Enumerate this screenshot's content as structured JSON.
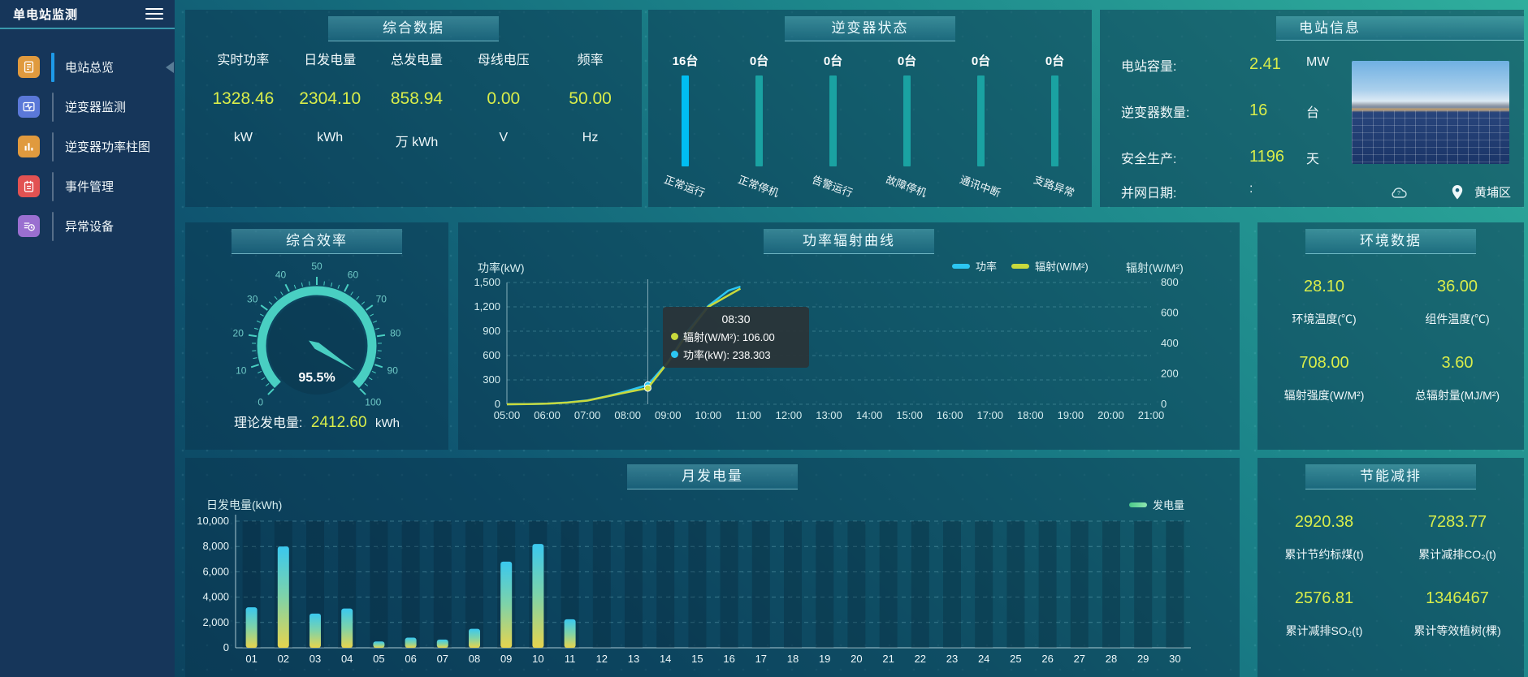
{
  "colors": {
    "accent_yellow": "#d9ed4a",
    "power_line": "#2cc6f2",
    "radiation_line": "#c8d93c",
    "inverter_run": "#00bdf2",
    "inverter_idle": "#1aa2a2",
    "gauge": "#49cfc2",
    "bar_top": "#3ac8ef",
    "bar_bottom": "#e6d44e",
    "menu_active": "#1e9ae8"
  },
  "sidebar": {
    "title": "单电站监测",
    "items": [
      {
        "name": "station-overview",
        "label": "电站总览",
        "icon": "report-icon",
        "color": "#e09a3e",
        "active": true
      },
      {
        "name": "inverter-monitoring",
        "label": "逆变器监测",
        "icon": "waveform-monitor-icon",
        "color": "#5a78d8",
        "active": false
      },
      {
        "name": "inverter-power-bars",
        "label": "逆变器功率柱图",
        "icon": "bar-chart-icon",
        "color": "#e09a3e",
        "active": false
      },
      {
        "name": "event-management",
        "label": "事件管理",
        "icon": "notebook-icon",
        "color": "#e25252",
        "active": false
      },
      {
        "name": "abnormal-devices",
        "label": "异常设备",
        "icon": "device-list-icon",
        "color": "#9a6fd0",
        "active": false
      }
    ]
  },
  "panels": {
    "summary": {
      "title": "综合数据",
      "stats": [
        {
          "label": "实时功率",
          "value": "1328.46",
          "unit": "kW"
        },
        {
          "label": "日发电量",
          "value": "2304.10",
          "unit": "kWh"
        },
        {
          "label": "总发电量",
          "value": "858.94",
          "unit": "万 kWh"
        },
        {
          "label": "母线电压",
          "value": "0.00",
          "unit": "V"
        },
        {
          "label": "频率",
          "value": "50.00",
          "unit": "Hz"
        }
      ]
    },
    "inverter_status": {
      "title": "逆变器状态",
      "bars": [
        {
          "count": "16台",
          "label": "正常运行",
          "color": "#00bdf2"
        },
        {
          "count": "0台",
          "label": "正常停机",
          "color": "#1aa2a2"
        },
        {
          "count": "0台",
          "label": "告警运行",
          "color": "#1aa2a2"
        },
        {
          "count": "0台",
          "label": "故障停机",
          "color": "#1aa2a2"
        },
        {
          "count": "0台",
          "label": "通讯中断",
          "color": "#1aa2a2"
        },
        {
          "count": "0台",
          "label": "支路异常",
          "color": "#1aa2a2"
        }
      ]
    },
    "station_info": {
      "title": "电站信息",
      "rows": [
        {
          "label": "电站容量:",
          "value": "2.41",
          "unit": "MW",
          "muted": false
        },
        {
          "label": "逆变器数量:",
          "value": "16",
          "unit": "台",
          "muted": false
        },
        {
          "label": "安全生产:",
          "value": "1196",
          "unit": "天",
          "muted": false
        },
        {
          "label": "并网日期: ",
          "value": ":",
          "unit": "",
          "muted": true
        }
      ],
      "icons": [
        "weather-cloud-icon",
        "location-pin-icon"
      ],
      "location": "黄埔区"
    },
    "efficiency": {
      "title": "综合效率",
      "gauge": {
        "min": 0,
        "max": 100,
        "value": 95.5,
        "tick_labels": [
          "0",
          "10",
          "20",
          "30",
          "40",
          "50",
          "60",
          "70",
          "80",
          "90",
          "100"
        ]
      },
      "gauge_label": "95.5%",
      "theory_label": "理论发电量:",
      "theory_value": "2412.60",
      "theory_unit": "kWh"
    },
    "environment": {
      "title": "环境数据",
      "stats": [
        {
          "value": "28.10",
          "label": "环境温度(℃)"
        },
        {
          "value": "36.00",
          "label": "组件温度(℃)"
        },
        {
          "value": "708.00",
          "label": "辐射强度(W/M²)"
        },
        {
          "value": "3.60",
          "label": "总辐射量(MJ/M²)"
        }
      ]
    },
    "energy_saving": {
      "title": "节能减排",
      "stats": [
        {
          "value": "2920.38",
          "label": "累计节约标煤(t)"
        },
        {
          "value": "7283.77",
          "label": "累计减排CO₂(t)"
        },
        {
          "value": "2576.81",
          "label": "累计减排SO₂(t)"
        },
        {
          "value": "1346467",
          "label": "累计等效植树(棵)"
        }
      ]
    }
  },
  "chart_data": [
    {
      "id": "power_radiation",
      "type": "line",
      "title": "功率辐射曲线",
      "ylabel_left": "功率(kW)",
      "ylabel_right": "辐射(W/M²)",
      "xlim_hours": [
        5,
        21
      ],
      "ylim_left": [
        0,
        1500
      ],
      "ylim_right": [
        0,
        800
      ],
      "y_left_ticks": [
        "1,500",
        "1,200",
        "900",
        "600",
        "300",
        "0"
      ],
      "y_right_ticks": [
        "800",
        "600",
        "400",
        "200",
        "0"
      ],
      "x_ticks": [
        "05:00",
        "06:00",
        "07:00",
        "08:00",
        "09:00",
        "10:00",
        "11:00",
        "12:00",
        "13:00",
        "14:00",
        "15:00",
        "16:00",
        "17:00",
        "18:00",
        "19:00",
        "20:00",
        "21:00"
      ],
      "grid": true,
      "legend_position": "top",
      "series": [
        {
          "name": "功率",
          "axis": "left",
          "color": "#2cc6f2",
          "points": [
            [
              5,
              0
            ],
            [
              5.5,
              2
            ],
            [
              6,
              8
            ],
            [
              6.5,
              22
            ],
            [
              7,
              48
            ],
            [
              7.5,
              100
            ],
            [
              8,
              165
            ],
            [
              8.5,
              238.303
            ],
            [
              9,
              520
            ],
            [
              9.5,
              910
            ],
            [
              10,
              1210
            ],
            [
              10.5,
              1400
            ],
            [
              10.8,
              1450
            ]
          ]
        },
        {
          "name": "辐射(W/M²)",
          "axis": "right",
          "color": "#c8d93c",
          "points": [
            [
              5,
              0
            ],
            [
              5.5,
              1
            ],
            [
              6,
              4
            ],
            [
              6.5,
              11
            ],
            [
              7,
              24
            ],
            [
              7.5,
              52
            ],
            [
              8,
              80
            ],
            [
              8.5,
              106
            ],
            [
              9,
              275
            ],
            [
              9.5,
              470
            ],
            [
              10,
              640
            ],
            [
              10.8,
              760
            ]
          ]
        }
      ],
      "crosshair_hour": 8.5,
      "tooltip": {
        "time": "08:30",
        "lines": [
          {
            "color": "#c8d93c",
            "text": "辐射(W/M²): 106.00"
          },
          {
            "color": "#2cc6f2",
            "text": "功率(kW): 238.303"
          }
        ]
      }
    },
    {
      "id": "monthly_energy",
      "type": "bar",
      "title": "月发电量",
      "ylabel": "日发电量(kWh)",
      "legend": "发电量",
      "ylim": [
        0,
        10000
      ],
      "y_ticks": [
        "10,000",
        "8,000",
        "6,000",
        "4,000",
        "2,000",
        "0"
      ],
      "categories": [
        "01",
        "02",
        "03",
        "04",
        "05",
        "06",
        "07",
        "08",
        "09",
        "10",
        "11",
        "12",
        "13",
        "14",
        "15",
        "16",
        "17",
        "18",
        "19",
        "20",
        "21",
        "22",
        "23",
        "24",
        "25",
        "26",
        "27",
        "28",
        "29",
        "30"
      ],
      "values": [
        3200,
        8000,
        2700,
        3100,
        500,
        800,
        650,
        1500,
        6800,
        8200,
        2250,
        0,
        0,
        0,
        0,
        0,
        0,
        0,
        0,
        0,
        0,
        0,
        0,
        0,
        0,
        0,
        0,
        0,
        0,
        0
      ],
      "grid": true
    }
  ]
}
